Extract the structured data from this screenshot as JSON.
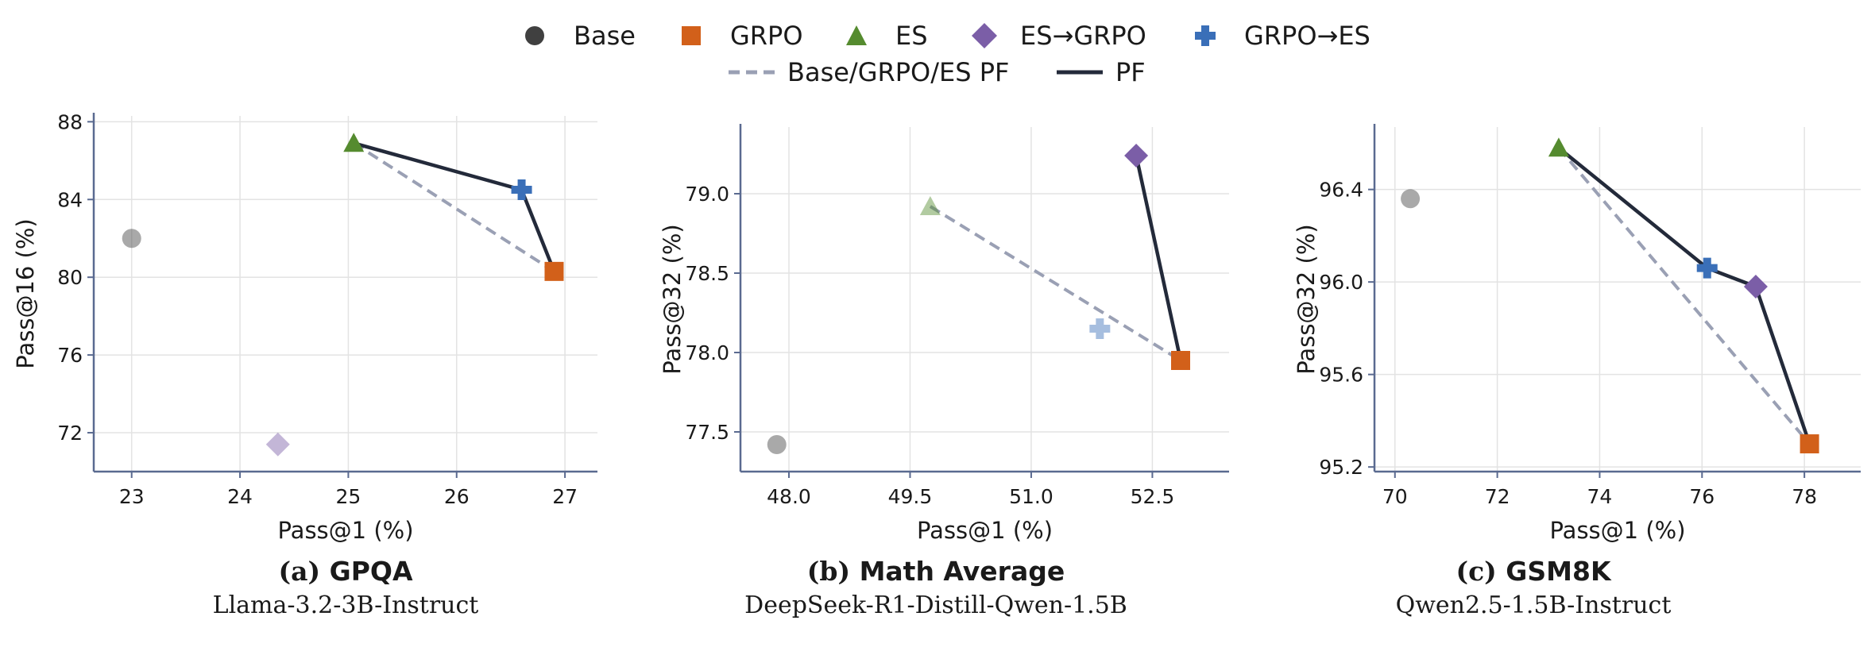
{
  "legend": {
    "items": [
      {
        "label": "Base",
        "marker": "circle",
        "color": "#404040"
      },
      {
        "label": "GRPO",
        "marker": "square",
        "color": "#d2601a"
      },
      {
        "label": "ES",
        "marker": "triangle",
        "color": "#558b2f"
      },
      {
        "label": "ES→GRPO",
        "marker": "diamond",
        "color": "#7b5ea7"
      },
      {
        "label": "GRPO→ES",
        "marker": "plus",
        "color": "#3a6fb8"
      }
    ],
    "lines": [
      {
        "label": "Base/GRPO/ES PF",
        "style": "dashed",
        "color": "#9aa0b4"
      },
      {
        "label": "PF",
        "style": "solid",
        "color": "#232a3a"
      }
    ]
  },
  "colors": {
    "axis": "#5a6a90",
    "grid": "#e3e3e3",
    "pf": "#232a3a",
    "base_pf": "#9aa0b4"
  },
  "chart_data": [
    {
      "type": "scatter",
      "caption_letter": "(a)",
      "caption_name": "GPQA",
      "subtitle": "Llama-3.2-3B-Instruct",
      "xlabel": "Pass@1 (%)",
      "ylabel": "Pass@16 (%)",
      "xlim": [
        22.65,
        27.3
      ],
      "ylim": [
        70.0,
        88.3
      ],
      "xticks": [
        "23",
        "24",
        "25",
        "26",
        "27"
      ],
      "yticks": [
        "72",
        "76",
        "80",
        "84",
        "88"
      ],
      "grid": true,
      "points": [
        {
          "name": "Base",
          "marker": "circle",
          "x": 23.0,
          "y": 82.0,
          "faded": true
        },
        {
          "name": "GRPO",
          "marker": "square",
          "x": 26.9,
          "y": 80.3,
          "faded": false
        },
        {
          "name": "ES",
          "marker": "triangle",
          "x": 25.05,
          "y": 86.9,
          "faded": false
        },
        {
          "name": "ES→GRPO",
          "marker": "diamond",
          "x": 24.35,
          "y": 71.4,
          "faded": true
        },
        {
          "name": "GRPO→ES",
          "marker": "plus",
          "x": 26.6,
          "y": 84.5,
          "faded": false
        }
      ],
      "base_pf": [
        [
          25.05,
          86.9
        ],
        [
          26.9,
          80.3
        ]
      ],
      "pf": [
        [
          25.05,
          86.9
        ],
        [
          26.6,
          84.5
        ],
        [
          26.9,
          80.3
        ]
      ]
    },
    {
      "type": "scatter",
      "caption_letter": "(b)",
      "caption_name": "Math Average",
      "subtitle": "DeepSeek-R1-Distill-Qwen-1.5B",
      "xlabel": "Pass@1 (%)",
      "ylabel": "Pass@32 (%)",
      "xlim": [
        47.4,
        53.45
      ],
      "ylim": [
        77.25,
        79.42
      ],
      "xticks": [
        "48.0",
        "49.5",
        "51.0",
        "52.5"
      ],
      "yticks": [
        "77.5",
        "78.0",
        "78.5",
        "79.0"
      ],
      "grid": true,
      "points": [
        {
          "name": "Base",
          "marker": "circle",
          "x": 47.85,
          "y": 77.42,
          "faded": true
        },
        {
          "name": "GRPO",
          "marker": "square",
          "x": 52.85,
          "y": 77.95,
          "faded": false
        },
        {
          "name": "ES",
          "marker": "triangle",
          "x": 49.75,
          "y": 78.92,
          "faded": true
        },
        {
          "name": "ES→GRPO",
          "marker": "diamond",
          "x": 52.3,
          "y": 79.24,
          "faded": false
        },
        {
          "name": "GRPO→ES",
          "marker": "plus",
          "x": 51.85,
          "y": 78.15,
          "faded": true
        }
      ],
      "base_pf": [
        [
          49.75,
          78.92
        ],
        [
          52.85,
          77.95
        ]
      ],
      "pf": [
        [
          52.3,
          79.24
        ],
        [
          52.85,
          77.95
        ]
      ]
    },
    {
      "type": "scatter",
      "caption_letter": "(c)",
      "caption_name": "GSM8K",
      "subtitle": "Qwen2.5-1.5B-Instruct",
      "xlabel": "Pass@1 (%)",
      "ylabel": "Pass@32 (%)",
      "xlim": [
        69.6,
        79.1
      ],
      "ylim": [
        95.18,
        96.67
      ],
      "xticks": [
        "70",
        "72",
        "74",
        "76",
        "78"
      ],
      "yticks": [
        "95.2",
        "95.6",
        "96.0",
        "96.4"
      ],
      "grid": true,
      "points": [
        {
          "name": "Base",
          "marker": "circle",
          "x": 70.3,
          "y": 96.36,
          "faded": true
        },
        {
          "name": "GRPO",
          "marker": "square",
          "x": 78.1,
          "y": 95.3,
          "faded": false
        },
        {
          "name": "ES",
          "marker": "triangle",
          "x": 73.2,
          "y": 96.58,
          "faded": false
        },
        {
          "name": "ES→GRPO",
          "marker": "diamond",
          "x": 77.05,
          "y": 95.98,
          "faded": false
        },
        {
          "name": "GRPO→ES",
          "marker": "plus",
          "x": 76.1,
          "y": 96.06,
          "faded": false
        }
      ],
      "base_pf": [
        [
          73.2,
          96.58
        ],
        [
          78.1,
          95.3
        ]
      ],
      "pf": [
        [
          73.2,
          96.58
        ],
        [
          76.1,
          96.06
        ],
        [
          77.05,
          95.98
        ],
        [
          78.1,
          95.3
        ]
      ]
    }
  ]
}
